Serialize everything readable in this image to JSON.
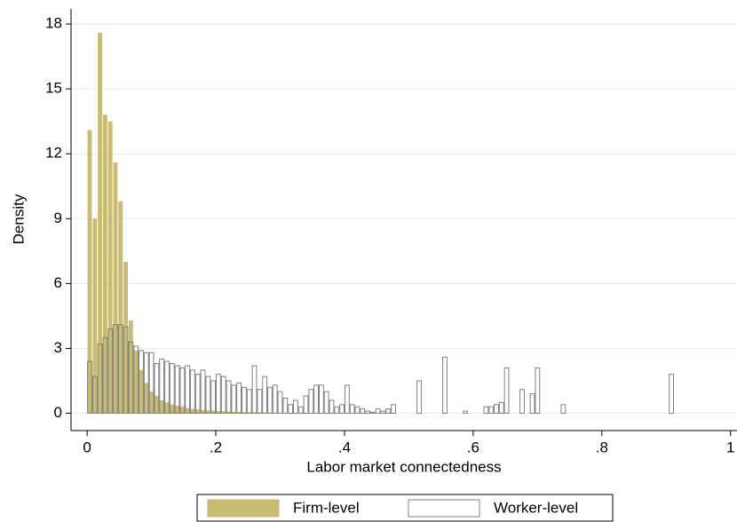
{
  "chart_data": {
    "type": "histogram",
    "xlabel": "Labor market connectedness",
    "ylabel": "Density",
    "bins": [
      0,
      0.008,
      0.016,
      0.024,
      0.032,
      0.04,
      0.048,
      0.056,
      0.064,
      0.072,
      0.08,
      0.088,
      0.096,
      0.104,
      0.112,
      0.12,
      0.128,
      0.136,
      0.144,
      0.152,
      0.16,
      0.168,
      0.176,
      0.184,
      0.192,
      0.2,
      0.208,
      0.216,
      0.224,
      0.232,
      0.24,
      0.248,
      0.256,
      0.264,
      0.272,
      0.28,
      0.288,
      0.296,
      0.304,
      0.312,
      0.32,
      0.328,
      0.336,
      0.344,
      0.352,
      0.36,
      0.368,
      0.376,
      0.384,
      0.392,
      0.4,
      0.408,
      0.416,
      0.424,
      0.432,
      0.44,
      0.448,
      0.456,
      0.464,
      0.472,
      0.48,
      0.488,
      0.496,
      0.504,
      0.512,
      0.52,
      0.528,
      0.536,
      0.544,
      0.552,
      0.56,
      0.568,
      0.576,
      0.584,
      0.592,
      0.6,
      0.608,
      0.616,
      0.624,
      0.632,
      0.64,
      0.648,
      0.656,
      0.664,
      0.672,
      0.68,
      0.688,
      0.696,
      0.704,
      0.712,
      0.72,
      0.728,
      0.736,
      0.744,
      0.752,
      0.76,
      0.768,
      0.776,
      0.784,
      0.792,
      0.8,
      0.808,
      0.816,
      0.824,
      0.832,
      0.84,
      0.848,
      0.856,
      0.864,
      0.872,
      0.88,
      0.888,
      0.896,
      0.904,
      0.912,
      0.92
    ],
    "series": [
      {
        "name": "Firm-level",
        "color": "#c8bb72",
        "fill": true,
        "values": [
          13.1,
          9.0,
          17.6,
          13.8,
          13.5,
          11.6,
          9.8,
          7.0,
          4.3,
          2.9,
          2.0,
          1.4,
          1.0,
          0.8,
          0.6,
          0.5,
          0.4,
          0.35,
          0.3,
          0.25,
          0.2,
          0.18,
          0.15,
          0.13,
          0.12,
          0.1,
          0.09,
          0.08,
          0.07,
          0.06,
          0.05,
          0.05,
          0.04,
          0.04,
          0.03,
          0.03,
          0.03,
          0.02,
          0.02,
          0.02,
          0.02,
          0.02,
          0.01,
          0.01,
          0.01,
          0.01,
          0.01,
          0.01,
          0.01,
          0.01,
          0,
          0,
          0,
          0,
          0,
          0,
          0,
          0,
          0,
          0,
          0,
          0,
          0,
          0,
          0,
          0,
          0,
          0,
          0,
          0,
          0,
          0,
          0,
          0,
          0,
          0,
          0,
          0,
          0,
          0,
          0,
          0,
          0,
          0,
          0,
          0,
          0,
          0,
          0,
          0,
          0,
          0,
          0,
          0,
          0,
          0,
          0,
          0,
          0,
          0,
          0,
          0,
          0,
          0,
          0,
          0,
          0,
          0,
          0,
          0,
          0,
          0,
          0,
          0,
          0
        ]
      },
      {
        "name": "Worker-level",
        "color": "#808080",
        "fill": false,
        "values": [
          2.4,
          1.7,
          3.2,
          3.5,
          3.9,
          4.1,
          4.1,
          4.0,
          3.3,
          3.1,
          2.9,
          2.8,
          2.8,
          2.3,
          2.5,
          2.4,
          2.3,
          2.2,
          2.1,
          2.2,
          2.0,
          1.8,
          2.0,
          1.7,
          1.5,
          1.8,
          1.7,
          1.5,
          1.3,
          1.4,
          1.2,
          1.1,
          2.2,
          1.1,
          1.7,
          1.2,
          1.3,
          1.0,
          0.7,
          0.4,
          0.6,
          0.3,
          0.8,
          1.1,
          1.3,
          1.3,
          1.0,
          0.6,
          0.3,
          0.4,
          1.3,
          0.4,
          0.3,
          0.2,
          0.1,
          0.05,
          0.2,
          0.1,
          0.2,
          0.4,
          0,
          0,
          0,
          0,
          1.5,
          0,
          0,
          0,
          0,
          2.6,
          0,
          0,
          0,
          0.1,
          0,
          0,
          0,
          0.3,
          0.3,
          0.4,
          0.5,
          2.1,
          0,
          0,
          1.1,
          0,
          0.9,
          2.1,
          0,
          0,
          0,
          0,
          0.4,
          0,
          0,
          0,
          0,
          0,
          0,
          0,
          0,
          0,
          0,
          0,
          0,
          0,
          0,
          0,
          0,
          0,
          0,
          0,
          0,
          1.8,
          0
        ]
      }
    ],
    "xlim": [
      -0.025,
      1.01
    ],
    "ylim": [
      -0.8,
      18.7
    ],
    "xticks": [
      0,
      {
        "value": 0.2,
        "label": ".2"
      },
      {
        "value": 0.4,
        "label": ".4"
      },
      {
        "value": 0.6,
        "label": ".6"
      },
      {
        "value": 0.8,
        "label": ".8"
      },
      1
    ],
    "yticks": [
      0,
      3,
      6,
      9,
      12,
      15,
      18
    ],
    "grid": true,
    "legend": "bottom"
  }
}
